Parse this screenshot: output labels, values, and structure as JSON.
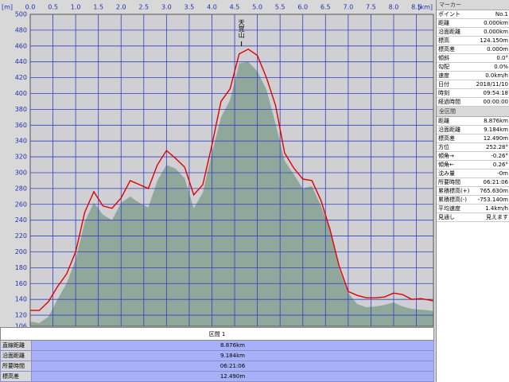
{
  "chart_data": {
    "type": "line",
    "y_unit": "[m]",
    "x_unit": "[km]",
    "x": [
      0,
      0.2,
      0.4,
      0.6,
      0.8,
      1.0,
      1.2,
      1.4,
      1.6,
      1.8,
      2.0,
      2.2,
      2.4,
      2.6,
      2.8,
      3.0,
      3.2,
      3.4,
      3.6,
      3.8,
      4.0,
      4.2,
      4.4,
      4.6,
      4.8,
      5.0,
      5.2,
      5.4,
      5.6,
      5.8,
      6.0,
      6.2,
      6.4,
      6.6,
      6.8,
      7.0,
      7.2,
      7.4,
      7.6,
      7.8,
      8.0,
      8.2,
      8.4,
      8.6,
      8.8,
      8.876
    ],
    "series": [
      {
        "color": "#8fa89b",
        "fill": true,
        "values": [
          112,
          110,
          118,
          140,
          160,
          190,
          238,
          262,
          247,
          240,
          262,
          270,
          262,
          256,
          290,
          310,
          305,
          293,
          255,
          275,
          325,
          370,
          392,
          438,
          440,
          428,
          405,
          362,
          315,
          298,
          280,
          283,
          258,
          228,
          178,
          148,
          134,
          130,
          131,
          133,
          136,
          131,
          128,
          127,
          126,
          125
        ]
      },
      {
        "color": "#e00000",
        "fill": false,
        "values": [
          126,
          126,
          137,
          156,
          172,
          200,
          250,
          276,
          258,
          255,
          268,
          290,
          285,
          280,
          310,
          328,
          318,
          307,
          272,
          285,
          335,
          390,
          406,
          450,
          456,
          448,
          420,
          385,
          325,
          306,
          292,
          290,
          265,
          228,
          182,
          150,
          145,
          142,
          142,
          143,
          148,
          146,
          140,
          141,
          139,
          138
        ]
      }
    ],
    "annotation": {
      "text": "天覚山",
      "x": 4.65
    },
    "xlim": [
      0,
      8.876
    ],
    "ylim": [
      106,
      500
    ],
    "xticks": [
      {
        "value": 0,
        "label": "0.0"
      },
      0.5,
      {
        "value": 1,
        "label": "1.0"
      },
      1.5,
      {
        "value": 2,
        "label": "2.0"
      },
      2.5,
      {
        "value": 3,
        "label": "3.0"
      },
      3.5,
      {
        "value": 4,
        "label": "4.0"
      },
      4.5,
      {
        "value": 5,
        "label": "5.0"
      },
      5.5,
      {
        "value": 6,
        "label": "6.0"
      },
      6.5,
      {
        "value": 7,
        "label": "7.0"
      },
      7.5,
      {
        "value": 8,
        "label": "8.0"
      },
      8.5
    ],
    "yticks": [
      106,
      120,
      140,
      160,
      180,
      200,
      220,
      240,
      260,
      280,
      300,
      320,
      340,
      360,
      380,
      400,
      420,
      440,
      460,
      480,
      500
    ],
    "grid": true
  },
  "section_table": {
    "header": "区間 1",
    "rows": [
      [
        "直線距離",
        "8.876km"
      ],
      [
        "沿面距離",
        "9.184km"
      ],
      [
        "所要時間",
        "06:21:06"
      ],
      [
        "標高差",
        "12.490m"
      ]
    ]
  },
  "marker_panel": {
    "title": "マーカー",
    "rows": [
      [
        "ポイント",
        "No.1"
      ],
      [
        "距離",
        "0.000km"
      ],
      [
        "沿面距離",
        "0.000km"
      ],
      [
        "標高",
        "124.150m"
      ],
      [
        "標高差",
        "0.000m"
      ],
      [
        "傾斜",
        "0.0°"
      ],
      [
        "勾配",
        "0.0%"
      ],
      [
        "速度",
        "0.0km/h"
      ],
      [
        "日付",
        "2018/11/10"
      ],
      [
        "時刻",
        "09:54:18"
      ],
      [
        "経過時間",
        "00:00:00"
      ]
    ]
  },
  "total_panel": {
    "title": "全区間",
    "rows": [
      [
        "距離",
        "8.876km"
      ],
      [
        "沿面距離",
        "9.184km"
      ],
      [
        "標高差",
        "12.490m"
      ],
      [
        "方位",
        "252.28°"
      ],
      [
        "傾角→",
        "-0.26°"
      ],
      [
        "傾角←",
        "0.26°"
      ],
      [
        "沈み量",
        "-0m"
      ],
      [
        "所要時間",
        "06:21:06"
      ],
      [
        "累積標高(+)",
        "765.630m"
      ],
      [
        "累積標高(-)",
        "-753.140m"
      ],
      [
        "平均速度",
        "1.4km/h"
      ],
      [
        "見通し",
        "見えます"
      ]
    ]
  }
}
